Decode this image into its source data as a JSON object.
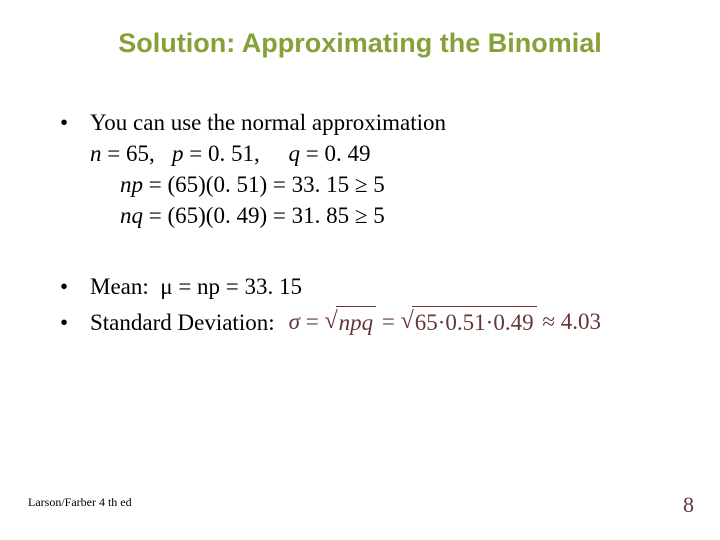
{
  "colors": {
    "title": "#86a13a",
    "body": "#000000",
    "formula": "#653636",
    "pagenum": "#653636",
    "footer": "#000000"
  },
  "title": "Solution: Approximating the Binomial",
  "bullets": {
    "b1": {
      "text": "You can use the normal approximation",
      "line2_n": "n",
      "line2_neq": " = 65,   ",
      "line2_p": "p",
      "line2_peq": " = 0. 51,     ",
      "line2_q": "q",
      "line2_qeq": " = 0. 49",
      "line3_np": "np",
      "line3_rest": " = (65)(0. 51) = 33. 15 ≥ 5",
      "line4_nq": "nq",
      "line4_rest": " = (65)(0. 49) = 31. 85 ≥ 5"
    },
    "b2": {
      "label": "Mean:  μ = np = 33. 15"
    },
    "b3": {
      "label": "Standard Deviation:",
      "formula": {
        "sigma": "σ",
        "eq1": " = ",
        "sqrt1": "npq",
        "eq2": " = ",
        "sqrt2": "65·0.51·0.49",
        "approx": " ≈ 4.03"
      }
    }
  },
  "footer": "Larson/Farber 4 th ed",
  "pagenum": "8"
}
